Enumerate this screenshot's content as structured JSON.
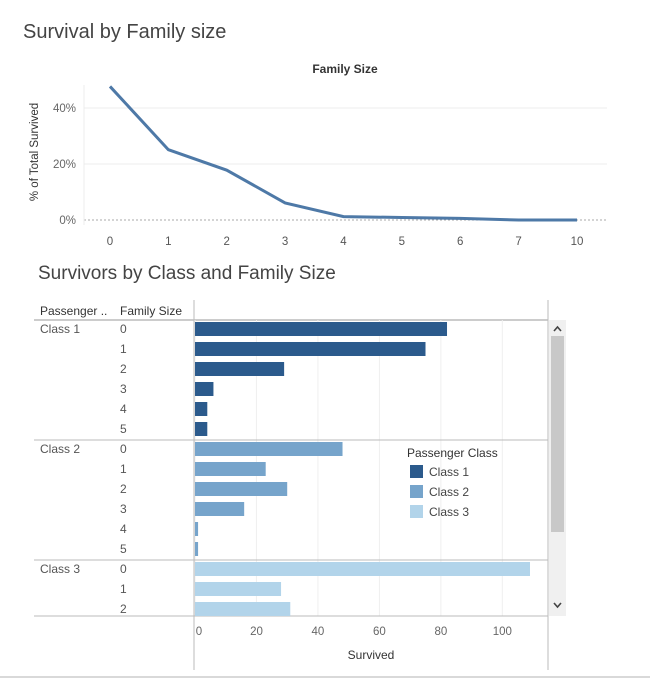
{
  "dashboard": {
    "title": "Survival by Family size",
    "subtitle": "Survivors by Class and Family Size"
  },
  "chart_data": [
    {
      "type": "line",
      "title": "Family Size",
      "xlabel": "",
      "ylabel": "% of Total Survived",
      "x": [
        "0",
        "1",
        "2",
        "3",
        "4",
        "5",
        "6",
        "7",
        "10"
      ],
      "values": [
        47.7,
        25.1,
        17.8,
        6.1,
        1.2,
        0.9,
        0.6,
        0.0,
        0.0
      ],
      "yticks": [
        "0%",
        "20%",
        "40%"
      ],
      "ylim": [
        0,
        50
      ],
      "color": "#4e79a7",
      "grid": true
    },
    {
      "type": "bar",
      "orientation": "horizontal",
      "row_headers": [
        "Passenger ..",
        "Family Size"
      ],
      "xlabel": "Survived",
      "xticks": [
        "0",
        "20",
        "40",
        "60",
        "80",
        "100"
      ],
      "xlim": [
        0,
        115
      ],
      "groups": [
        {
          "label": "Class 1",
          "color": "#2b5a8c",
          "rows": [
            {
              "size": "0",
              "value": 82
            },
            {
              "size": "1",
              "value": 75
            },
            {
              "size": "2",
              "value": 29
            },
            {
              "size": "3",
              "value": 6
            },
            {
              "size": "4",
              "value": 4
            },
            {
              "size": "5",
              "value": 4
            }
          ]
        },
        {
          "label": "Class 2",
          "color": "#76a4cb",
          "rows": [
            {
              "size": "0",
              "value": 48
            },
            {
              "size": "1",
              "value": 23
            },
            {
              "size": "2",
              "value": 30
            },
            {
              "size": "3",
              "value": 16
            },
            {
              "size": "4",
              "value": 1
            },
            {
              "size": "5",
              "value": 1
            }
          ]
        },
        {
          "label": "Class 3",
          "color": "#b2d4ea",
          "rows": [
            {
              "size": "0",
              "value": 109
            },
            {
              "size": "1",
              "value": 28
            },
            {
              "size": "2",
              "value": 31
            }
          ]
        }
      ],
      "legend": {
        "title": "Passenger Class",
        "placement": "right",
        "items": [
          "Class 1",
          "Class 2",
          "Class 3"
        ]
      }
    }
  ]
}
